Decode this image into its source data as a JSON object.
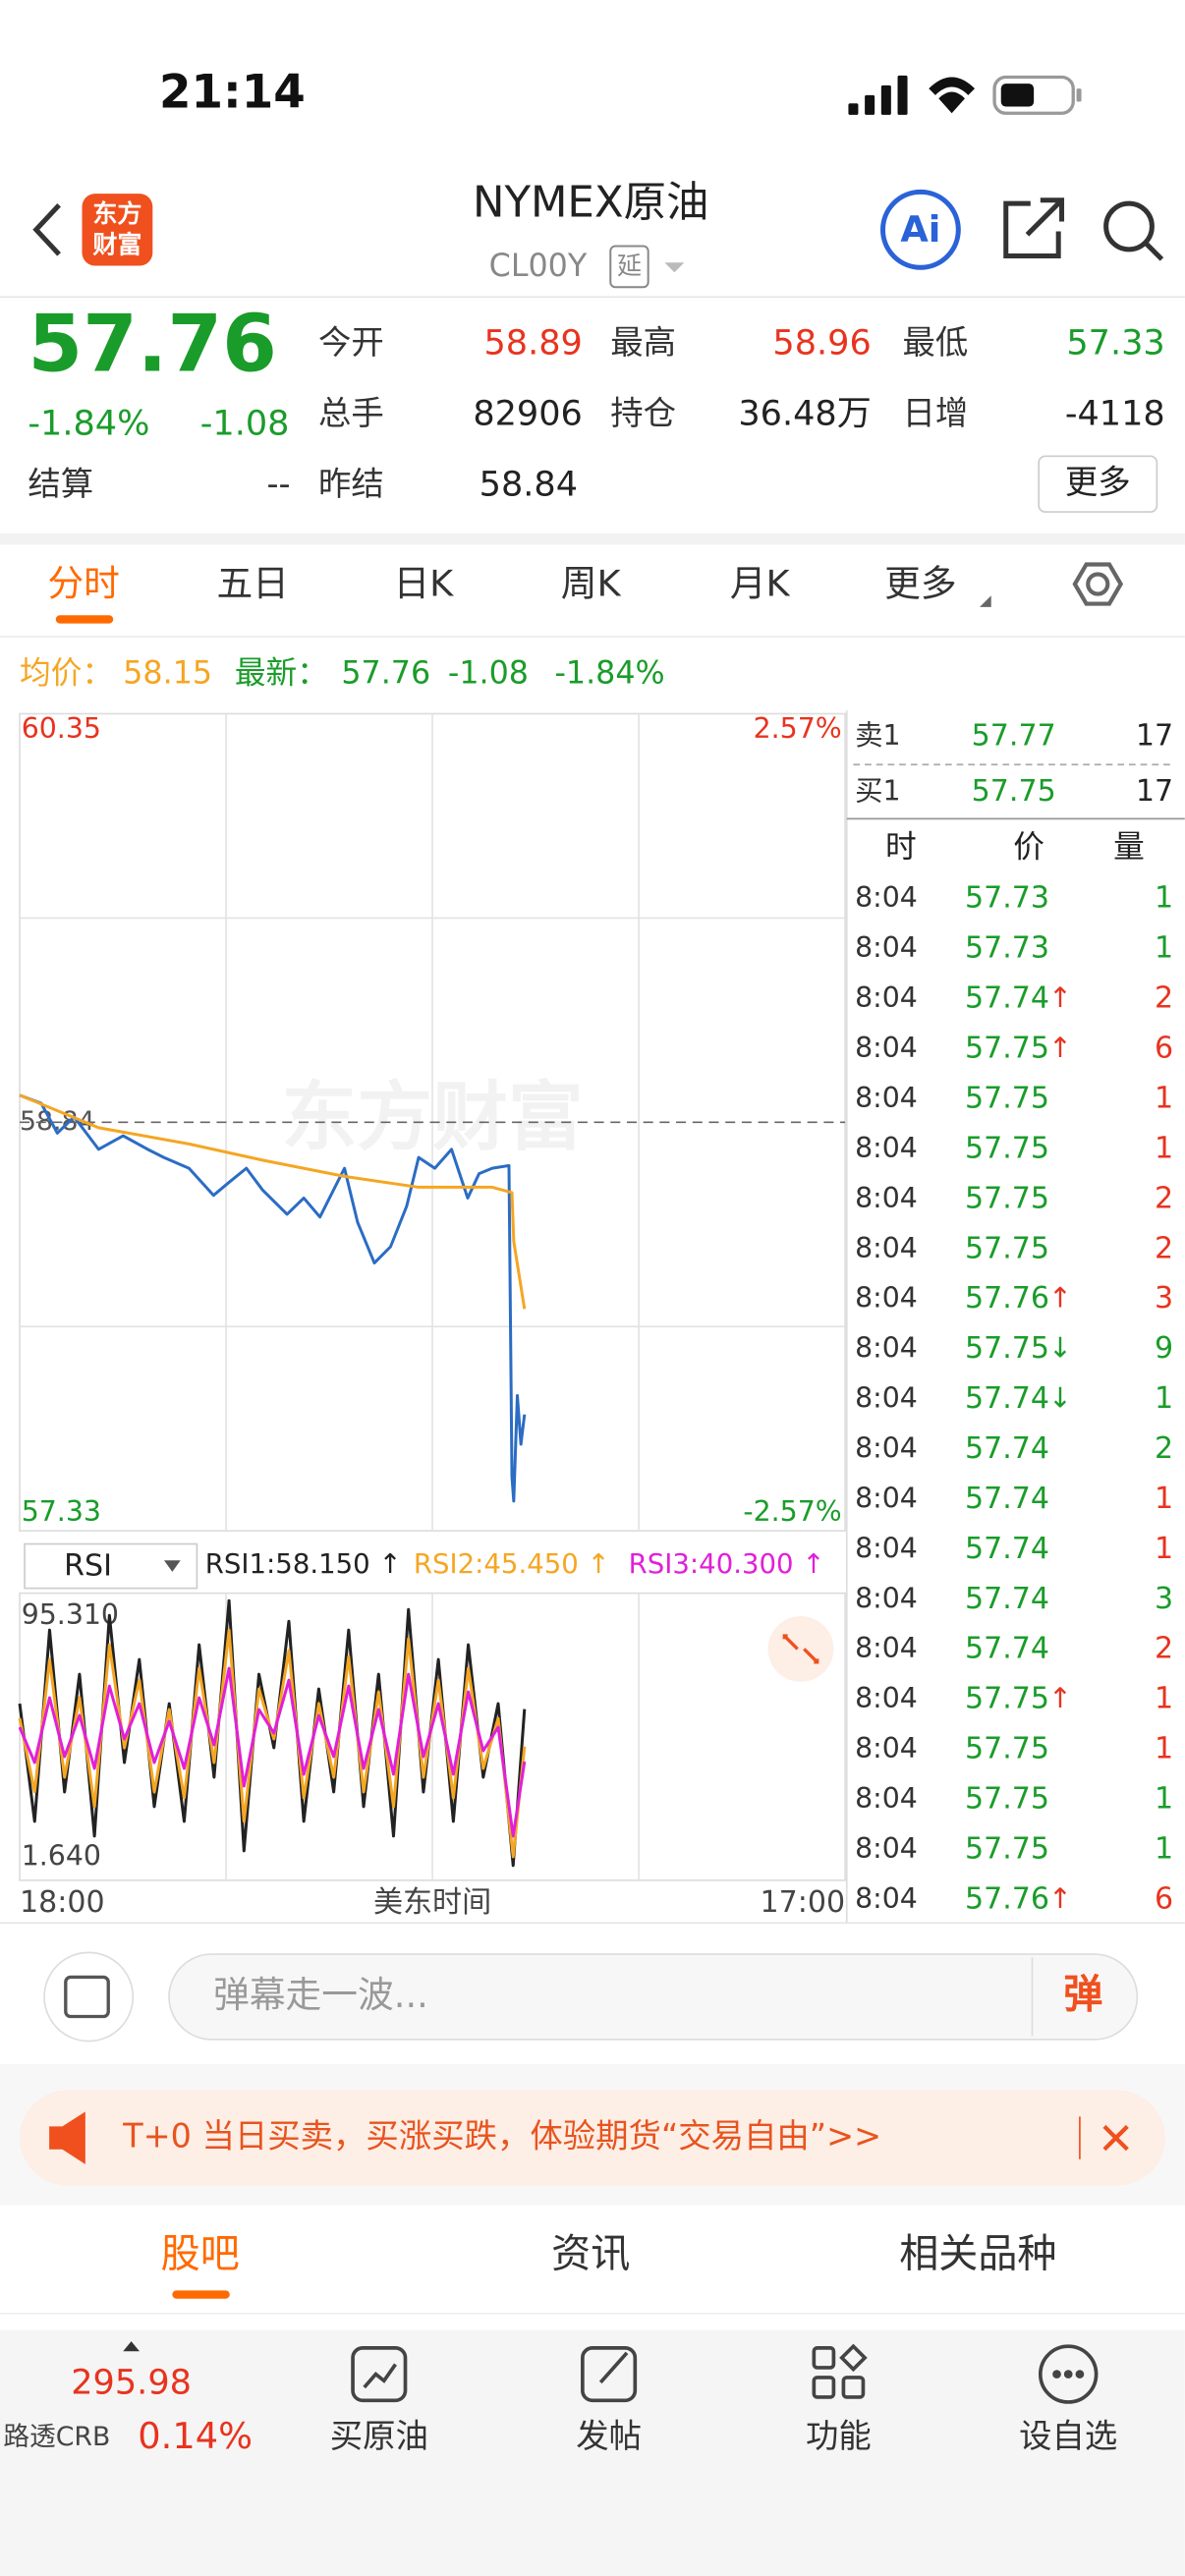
{
  "status_bar": {
    "time": "21:14"
  },
  "header": {
    "logo": [
      "东方",
      "财富"
    ],
    "title": "NYMEX原油",
    "code": "CL00Y",
    "tag": "延",
    "ai_button": "Ai"
  },
  "quote": {
    "price": "57.76",
    "change_pct": "-1.84%",
    "change": "-1.08",
    "fields": [
      {
        "label": "今开",
        "value": "58.89",
        "color": "#e8331f"
      },
      {
        "label": "最高",
        "value": "58.96",
        "color": "#e8331f"
      },
      {
        "label": "最低",
        "value": "57.33",
        "color": "#1a9c2a"
      },
      {
        "label": "总手",
        "value": "82906",
        "color": "#222222"
      },
      {
        "label": "持仓",
        "value": "36.48万",
        "color": "#222222"
      },
      {
        "label": "日增",
        "value": "-4118",
        "color": "#222222"
      }
    ],
    "settle": {
      "label": "结算",
      "value": "--"
    },
    "prev_settle": {
      "label": "昨结",
      "value": "58.84"
    },
    "more": "更多"
  },
  "tabs": [
    "分时",
    "五日",
    "日K",
    "周K",
    "月K",
    "更多"
  ],
  "summary": {
    "avg_label": "均价：",
    "avg": "58.15",
    "latest_label": "最新：",
    "latest": "57.76",
    "change": "-1.08",
    "change_pct": "-1.84%"
  },
  "chart_data": [
    {
      "type": "line",
      "watermark": "东方财富",
      "xlim": [
        0,
        1380
      ],
      "xticks": [
        {
          "value": 0,
          "label": "18:00"
        },
        {
          "value": 1380,
          "label": "17:00"
        }
      ],
      "xlabel": "美东时间",
      "xgrid": [
        345,
        690,
        1035
      ],
      "ylim": [
        57.33,
        60.35
      ],
      "yticks": [
        60.35,
        57.33
      ],
      "ytick_colors": [
        "#e8331f",
        "#1a9c2a"
      ],
      "ygrid": [
        58.085,
        59.595
      ],
      "ref": 58.84,
      "y2lim": [
        -2.57,
        2.57
      ],
      "y2ticks": [
        {
          "value": 2.57,
          "label": "2.57%"
        },
        {
          "value": -2.57,
          "label": "-2.57%"
        }
      ],
      "series": [
        {
          "color": "#2b6cc4",
          "x": [
            0,
            36,
            63,
            91,
            132,
            173,
            214,
            241,
            283,
            324,
            351,
            379,
            406,
            447,
            475,
            502,
            543,
            565,
            593,
            620,
            647,
            667,
            694,
            722,
            749,
            768,
            790,
            818,
            823,
            826,
            832,
            838,
            844
          ],
          "values": [
            58.94,
            58.91,
            58.8,
            58.86,
            58.74,
            58.79,
            58.74,
            58.71,
            58.67,
            58.57,
            58.62,
            58.67,
            58.59,
            58.5,
            58.56,
            58.49,
            58.67,
            58.47,
            58.32,
            58.38,
            58.53,
            58.71,
            58.67,
            58.74,
            58.56,
            58.65,
            58.67,
            58.68,
            57.53,
            57.44,
            57.83,
            57.65,
            57.76
          ]
        },
        {
          "color": "#f5a623",
          "x": [
            0,
            132,
            283,
            406,
            543,
            667,
            790,
            823,
            826,
            844
          ],
          "values": [
            58.94,
            58.82,
            58.76,
            58.7,
            58.64,
            58.6,
            58.6,
            58.58,
            58.4,
            58.15
          ]
        }
      ]
    },
    {
      "type": "line",
      "indicator": "RSI",
      "xlim": [
        0,
        1380
      ],
      "xgrid": [
        345,
        690,
        1035
      ],
      "ylim": [
        1.64,
        95.31
      ],
      "yticks": [
        {
          "value": 95.31,
          "label": "95.310"
        },
        {
          "value": 1.64,
          "label": "1.640"
        }
      ],
      "x": [
        0,
        25,
        50,
        75,
        100,
        125,
        150,
        175,
        200,
        225,
        250,
        275,
        300,
        325,
        350,
        375,
        400,
        425,
        450,
        475,
        500,
        525,
        550,
        575,
        600,
        625,
        650,
        675,
        700,
        725,
        750,
        775,
        800,
        825,
        844
      ],
      "series": [
        {
          "name": "RSI1:58.150 ↑",
          "color": "#222222",
          "values": [
            60,
            20,
            85,
            30,
            70,
            15,
            90,
            40,
            75,
            25,
            60,
            20,
            80,
            35,
            95,
            10,
            70,
            45,
            88,
            20,
            65,
            30,
            85,
            25,
            70,
            15,
            92,
            30,
            75,
            20,
            80,
            35,
            60,
            5,
            58.15
          ]
        },
        {
          "name": "RSI2:45.450 ↑",
          "color": "#f5a623",
          "values": [
            55,
            30,
            75,
            35,
            62,
            25,
            80,
            45,
            68,
            30,
            58,
            28,
            72,
            40,
            85,
            20,
            65,
            48,
            78,
            28,
            60,
            35,
            76,
            30,
            64,
            25,
            82,
            35,
            68,
            28,
            72,
            38,
            55,
            8,
            45.45
          ]
        },
        {
          "name": "RSI3:40.300 ↑",
          "color": "#e020d8",
          "values": [
            52,
            40,
            62,
            42,
            56,
            38,
            66,
            48,
            60,
            40,
            54,
            38,
            62,
            46,
            72,
            32,
            58,
            50,
            68,
            36,
            56,
            42,
            66,
            38,
            58,
            36,
            70,
            42,
            60,
            36,
            64,
            44,
            52,
            15,
            40.3
          ]
        }
      ]
    }
  ],
  "order_book": {
    "ask": {
      "label": "卖1",
      "price": "57.77",
      "volume": "17"
    },
    "bid": {
      "label": "买1",
      "price": "57.75",
      "volume": "17"
    },
    "headers": [
      "时",
      "价",
      "量"
    ],
    "trades": [
      {
        "time": "8:04",
        "price": "57.73",
        "volume": "1",
        "color": "#1a9c2a"
      },
      {
        "time": "8:04",
        "price": "57.73",
        "volume": "1",
        "color": "#1a9c2a"
      },
      {
        "time": "8:04",
        "price": "57.74",
        "arrow": "↑",
        "volume": "2",
        "color": "#e8331f"
      },
      {
        "time": "8:04",
        "price": "57.75",
        "arrow": "↑",
        "volume": "6",
        "color": "#e8331f"
      },
      {
        "time": "8:04",
        "price": "57.75",
        "volume": "1",
        "color": "#e8331f"
      },
      {
        "time": "8:04",
        "price": "57.75",
        "volume": "1",
        "color": "#e8331f"
      },
      {
        "time": "8:04",
        "price": "57.75",
        "volume": "2",
        "color": "#e8331f"
      },
      {
        "time": "8:04",
        "price": "57.75",
        "volume": "2",
        "color": "#e8331f"
      },
      {
        "time": "8:04",
        "price": "57.76",
        "arrow": "↑",
        "volume": "3",
        "color": "#e8331f"
      },
      {
        "time": "8:04",
        "price": "57.75",
        "arrow": "↓",
        "volume": "9",
        "color": "#1a9c2a"
      },
      {
        "time": "8:04",
        "price": "57.74",
        "arrow": "↓",
        "volume": "1",
        "color": "#1a9c2a"
      },
      {
        "time": "8:04",
        "price": "57.74",
        "volume": "2",
        "color": "#1a9c2a"
      },
      {
        "time": "8:04",
        "price": "57.74",
        "volume": "1",
        "color": "#e8331f"
      },
      {
        "time": "8:04",
        "price": "57.74",
        "volume": "1",
        "color": "#e8331f"
      },
      {
        "time": "8:04",
        "price": "57.74",
        "volume": "3",
        "color": "#1a9c2a"
      },
      {
        "time": "8:04",
        "price": "57.74",
        "volume": "2",
        "color": "#e8331f"
      },
      {
        "time": "8:04",
        "price": "57.75",
        "arrow": "↑",
        "volume": "1",
        "color": "#e8331f"
      },
      {
        "time": "8:04",
        "price": "57.75",
        "volume": "1",
        "color": "#e8331f"
      },
      {
        "time": "8:04",
        "price": "57.75",
        "volume": "1",
        "color": "#1a9c2a"
      },
      {
        "time": "8:04",
        "price": "57.75",
        "volume": "1",
        "color": "#1a9c2a"
      },
      {
        "time": "8:04",
        "price": "57.76",
        "arrow": "↑",
        "volume": "6",
        "color": "#e8331f"
      }
    ]
  },
  "comment": {
    "placeholder": "弹幕走一波...",
    "button": "弹"
  },
  "banner": {
    "text": "T+0 当日买卖，买涨买跌，体验期货“交易自由”>>"
  },
  "bottom_tabs": [
    "股吧",
    "资讯",
    "相关品种"
  ],
  "nav": {
    "index": {
      "value": "295.98",
      "name": "路透CRB",
      "change": "0.14%"
    },
    "items": [
      "买原油",
      "发帖",
      "功能",
      "设自选"
    ]
  }
}
